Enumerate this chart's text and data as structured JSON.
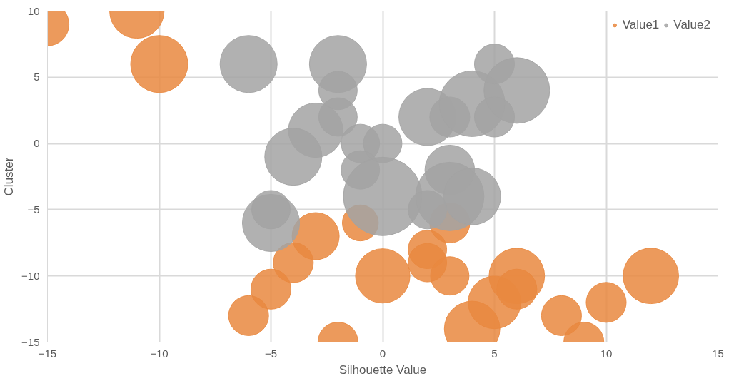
{
  "chart_data": {
    "type": "bubble",
    "xlabel": "Silhouette Value",
    "ylabel": "Cluster",
    "xlim": [
      -15,
      15
    ],
    "ylim": [
      -15,
      10
    ],
    "xticks": [
      -15,
      -10,
      -5,
      0,
      5,
      10,
      15
    ],
    "yticks": [
      -15,
      -10,
      -5,
      0,
      5,
      10
    ],
    "grid": true,
    "legend": "top right",
    "series": [
      {
        "name": "Value1",
        "color": "#e9883f",
        "x": [
          -15,
          -11,
          -10,
          -3,
          -1,
          -4,
          -5,
          -6,
          -2,
          0,
          2,
          2,
          3,
          3,
          4,
          5,
          6,
          6,
          8,
          9,
          10,
          12
        ],
        "values": [
          9,
          10,
          6,
          -7,
          -6,
          -9,
          -11,
          -13,
          -15,
          -10,
          -8,
          -9,
          -10,
          -6,
          -14,
          -12,
          -10,
          -11,
          -13,
          -15,
          -12,
          -10
        ],
        "sizes": [
          0.3,
          0.48,
          0.53,
          0.36,
          0.21,
          0.26,
          0.26,
          0.26,
          0.26,
          0.48,
          0.24,
          0.24,
          0.24,
          0.26,
          0.5,
          0.45,
          0.5,
          0.26,
          0.26,
          0.26,
          0.26,
          0.5
        ]
      },
      {
        "name": "Value2",
        "color": "#a3a3a3",
        "x": [
          -6,
          -2,
          -2,
          -3,
          -2,
          -4,
          -1,
          0,
          -1,
          0,
          2,
          3,
          4,
          5,
          6,
          5,
          3,
          3,
          4,
          2,
          -5,
          -5
        ],
        "values": [
          6,
          6,
          4,
          1,
          2,
          -1,
          0,
          0,
          -2,
          -4,
          2,
          2,
          3,
          6,
          4,
          2,
          -2,
          -4,
          -4,
          -5,
          -6,
          -5
        ],
        "sizes": [
          0.53,
          0.53,
          0.24,
          0.48,
          0.24,
          0.53,
          0.24,
          0.24,
          0.24,
          1,
          0.53,
          0.26,
          0.7,
          0.26,
          0.7,
          0.26,
          0.4,
          0.76,
          0.53,
          0.24,
          0.53,
          0.24
        ]
      }
    ]
  }
}
